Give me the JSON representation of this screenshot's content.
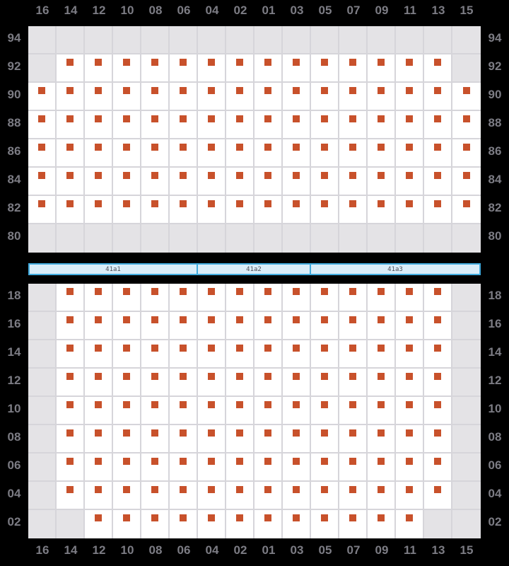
{
  "app": {
    "type": "seat-map"
  },
  "colors": {
    "background": "#000000",
    "label": "#7c7c84",
    "grid_line": "#d6d5da",
    "seat_cell": "#ffffff",
    "empty_cell": "#e4e3e6",
    "seat_marker": "#c8512b",
    "bar_fill": "#daedf9",
    "bar_border": "#41abde",
    "bar_text": "#4e4e58"
  },
  "columns": [
    "16",
    "14",
    "12",
    "10",
    "08",
    "06",
    "04",
    "02",
    "01",
    "03",
    "05",
    "07",
    "09",
    "11",
    "13",
    "15"
  ],
  "top_section": {
    "rows": [
      {
        "label": "94",
        "seats": [
          0,
          0,
          0,
          0,
          0,
          0,
          0,
          0,
          0,
          0,
          0,
          0,
          0,
          0,
          0,
          0
        ]
      },
      {
        "label": "92",
        "seats": [
          0,
          1,
          1,
          1,
          1,
          1,
          1,
          1,
          1,
          1,
          1,
          1,
          1,
          1,
          1,
          0
        ]
      },
      {
        "label": "90",
        "seats": [
          1,
          1,
          1,
          1,
          1,
          1,
          1,
          1,
          1,
          1,
          1,
          1,
          1,
          1,
          1,
          1
        ]
      },
      {
        "label": "88",
        "seats": [
          1,
          1,
          1,
          1,
          1,
          1,
          1,
          1,
          1,
          1,
          1,
          1,
          1,
          1,
          1,
          1
        ]
      },
      {
        "label": "86",
        "seats": [
          1,
          1,
          1,
          1,
          1,
          1,
          1,
          1,
          1,
          1,
          1,
          1,
          1,
          1,
          1,
          1
        ]
      },
      {
        "label": "84",
        "seats": [
          1,
          1,
          1,
          1,
          1,
          1,
          1,
          1,
          1,
          1,
          1,
          1,
          1,
          1,
          1,
          1
        ]
      },
      {
        "label": "82",
        "seats": [
          1,
          1,
          1,
          1,
          1,
          1,
          1,
          1,
          1,
          1,
          1,
          1,
          1,
          1,
          1,
          1
        ]
      },
      {
        "label": "80",
        "seats": [
          0,
          0,
          0,
          0,
          0,
          0,
          0,
          0,
          0,
          0,
          0,
          0,
          0,
          0,
          0,
          0
        ]
      }
    ]
  },
  "aisle_labels": {
    "segments": [
      {
        "label": "41a1",
        "col_span": 6
      },
      {
        "label": "41a2",
        "col_span": 4
      },
      {
        "label": "41a3",
        "col_span": 6
      }
    ]
  },
  "bottom_section": {
    "rows": [
      {
        "label": "18",
        "seats": [
          0,
          1,
          1,
          1,
          1,
          1,
          1,
          1,
          1,
          1,
          1,
          1,
          1,
          1,
          1,
          0
        ]
      },
      {
        "label": "16",
        "seats": [
          0,
          1,
          1,
          1,
          1,
          1,
          1,
          1,
          1,
          1,
          1,
          1,
          1,
          1,
          1,
          0
        ]
      },
      {
        "label": "14",
        "seats": [
          0,
          1,
          1,
          1,
          1,
          1,
          1,
          1,
          1,
          1,
          1,
          1,
          1,
          1,
          1,
          0
        ]
      },
      {
        "label": "12",
        "seats": [
          0,
          1,
          1,
          1,
          1,
          1,
          1,
          1,
          1,
          1,
          1,
          1,
          1,
          1,
          1,
          0
        ]
      },
      {
        "label": "10",
        "seats": [
          0,
          1,
          1,
          1,
          1,
          1,
          1,
          1,
          1,
          1,
          1,
          1,
          1,
          1,
          1,
          0
        ]
      },
      {
        "label": "08",
        "seats": [
          0,
          1,
          1,
          1,
          1,
          1,
          1,
          1,
          1,
          1,
          1,
          1,
          1,
          1,
          1,
          0
        ]
      },
      {
        "label": "06",
        "seats": [
          0,
          1,
          1,
          1,
          1,
          1,
          1,
          1,
          1,
          1,
          1,
          1,
          1,
          1,
          1,
          0
        ]
      },
      {
        "label": "04",
        "seats": [
          0,
          1,
          1,
          1,
          1,
          1,
          1,
          1,
          1,
          1,
          1,
          1,
          1,
          1,
          1,
          0
        ]
      },
      {
        "label": "02",
        "seats": [
          0,
          0,
          1,
          1,
          1,
          1,
          1,
          1,
          1,
          1,
          1,
          1,
          1,
          1,
          0,
          0
        ]
      }
    ]
  }
}
